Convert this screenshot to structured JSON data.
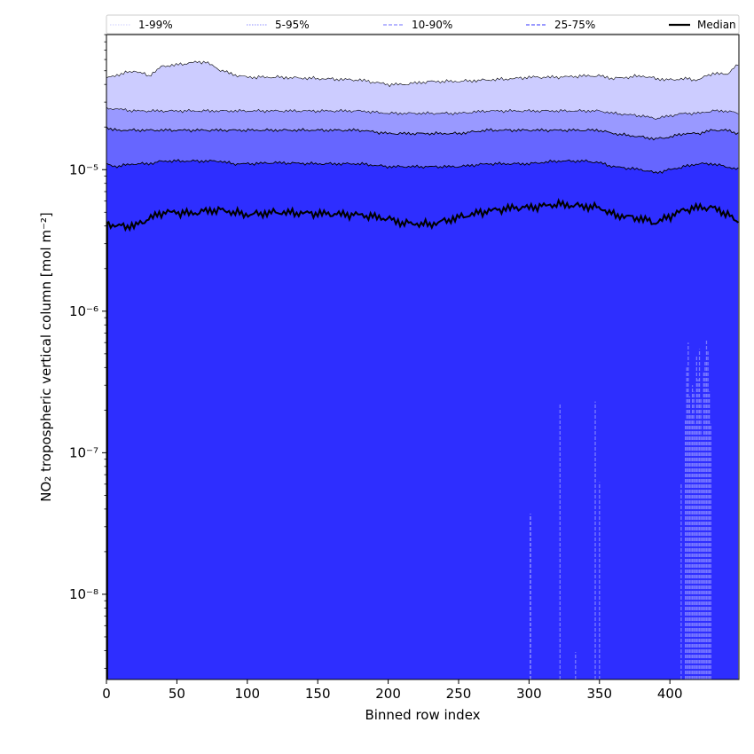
{
  "chart_data": {
    "type": "area",
    "title": "",
    "xlabel": "Binned row index",
    "ylabel": "NO₂ tropospheric vertical column [mol m⁻²]",
    "xlim": [
      0,
      449
    ],
    "ylim": [
      2.5e-09,
      9e-05
    ],
    "yscale": "log",
    "grid": false,
    "x_ticks": [
      0,
      50,
      100,
      150,
      200,
      250,
      300,
      350,
      400
    ],
    "x_tick_labels": [
      "0",
      "50",
      "100",
      "150",
      "200",
      "250",
      "300",
      "350",
      "400"
    ],
    "y_ticks": [
      1e-08,
      1e-07,
      1e-06,
      1e-05
    ],
    "y_tick_labels": [
      "10⁻⁸",
      "10⁻⁷",
      "10⁻⁶",
      "10⁻⁵"
    ],
    "legend": {
      "placement": "top",
      "entries": [
        {
          "label": "1-99%",
          "color": "#d8d8ff",
          "style": "dotted"
        },
        {
          "label": "5-95%",
          "color": "#a3a3ff",
          "style": "dotted"
        },
        {
          "label": "10-90%",
          "color": "#8a8aff",
          "style": "dashed"
        },
        {
          "label": "25-75%",
          "color": "#5c5cff",
          "style": "dashed"
        },
        {
          "label": "Median",
          "color": "#000000",
          "style": "solid"
        }
      ]
    },
    "band_colors": {
      "p1_99": "#ccccff",
      "p5_95": "#9999ff",
      "p10_90": "#6666ff",
      "p25_75": "#2e2eff"
    },
    "series_anchors": {
      "x": [
        0,
        5,
        20,
        30,
        40,
        50,
        60,
        70,
        80,
        90,
        100,
        120,
        150,
        180,
        200,
        210,
        230,
        250,
        270,
        290,
        300,
        320,
        340,
        350,
        360,
        380,
        390,
        400,
        410,
        420,
        430,
        440,
        449
      ],
      "p99": [
        4.4e-05,
        4.6e-05,
        5e-05,
        4.6e-05,
        5.4e-05,
        5.5e-05,
        5.7e-05,
        5.8e-05,
        5.1e-05,
        4.7e-05,
        4.5e-05,
        4.5e-05,
        4.4e-05,
        4.3e-05,
        4e-05,
        4e-05,
        4.2e-05,
        4.2e-05,
        4.3e-05,
        4.4e-05,
        4.5e-05,
        4.5e-05,
        4.6e-05,
        4.6e-05,
        4.4e-05,
        4.6e-05,
        4.4e-05,
        4.3e-05,
        4.4e-05,
        4.3e-05,
        4.8e-05,
        4.7e-05,
        5.6e-05
      ],
      "p95": [
        2.7e-05,
        2.7e-05,
        2.6e-05,
        2.6e-05,
        2.6e-05,
        2.6e-05,
        2.6e-05,
        2.6e-05,
        2.6e-05,
        2.6e-05,
        2.6e-05,
        2.6e-05,
        2.6e-05,
        2.6e-05,
        2.5e-05,
        2.5e-05,
        2.5e-05,
        2.5e-05,
        2.6e-05,
        2.6e-05,
        2.6e-05,
        2.6e-05,
        2.6e-05,
        2.6e-05,
        2.5e-05,
        2.4e-05,
        2.3e-05,
        2.4e-05,
        2.5e-05,
        2.5e-05,
        2.6e-05,
        2.6e-05,
        2.5e-05
      ],
      "p90": [
        2e-05,
        1.9e-05,
        1.9e-05,
        1.9e-05,
        1.9e-05,
        1.9e-05,
        1.9e-05,
        1.9e-05,
        1.9e-05,
        1.9e-05,
        1.9e-05,
        1.9e-05,
        1.9e-05,
        1.9e-05,
        1.8e-05,
        1.8e-05,
        1.8e-05,
        1.8e-05,
        1.9e-05,
        1.9e-05,
        1.9e-05,
        1.9e-05,
        1.9e-05,
        1.9e-05,
        1.8e-05,
        1.7e-05,
        1.65e-05,
        1.7e-05,
        1.8e-05,
        1.8e-05,
        1.9e-05,
        1.9e-05,
        1.8e-05
      ],
      "p75": [
        1.1e-05,
        1.05e-05,
        1.1e-05,
        1.1e-05,
        1.15e-05,
        1.15e-05,
        1.15e-05,
        1.15e-05,
        1.15e-05,
        1.1e-05,
        1.1e-05,
        1.12e-05,
        1.1e-05,
        1.1e-05,
        1.05e-05,
        1.05e-05,
        1.05e-05,
        1.05e-05,
        1.1e-05,
        1.1e-05,
        1.1e-05,
        1.15e-05,
        1.15e-05,
        1.12e-05,
        1.05e-05,
        1e-05,
        9.5e-06,
        1e-05,
        1.05e-05,
        1.1e-05,
        1.1e-05,
        1.05e-05,
        1e-05
      ],
      "median": [
        4.3e-06,
        4e-06,
        4e-06,
        4.5e-06,
        5e-06,
        5e-06,
        4.9e-06,
        5.1e-06,
        5.2e-06,
        5e-06,
        4.8e-06,
        5e-06,
        4.9e-06,
        4.8e-06,
        4.5e-06,
        4.2e-06,
        4.1e-06,
        4.6e-06,
        5.1e-06,
        5.4e-06,
        5.4e-06,
        5.7e-06,
        5.5e-06,
        5.4e-06,
        4.8e-06,
        4.5e-06,
        4.2e-06,
        4.7e-06,
        5.2e-06,
        5.4e-06,
        5.4e-06,
        4.9e-06,
        4.2e-06
      ],
      "p25": [
        2.5e-09,
        2.5e-09,
        2.5e-09,
        2.5e-09,
        2.5e-09,
        2.5e-09,
        2.5e-09,
        2.5e-09,
        2.5e-09,
        2.5e-09,
        2.5e-09,
        2.5e-09,
        2.5e-09,
        2.5e-09,
        2.5e-09,
        2.5e-09,
        2.5e-09,
        2.5e-09,
        2.5e-09,
        2.5e-09,
        2.5e-09,
        2.5e-09,
        2.5e-09,
        2.5e-09,
        2.5e-09,
        2.5e-09,
        2.5e-09,
        2.5e-09,
        2.5e-09,
        2.5e-09,
        2.5e-09,
        2.5e-09,
        2.5e-09
      ]
    },
    "lower_tail_spikes": [
      {
        "x": 301,
        "value": 3.7e-08
      },
      {
        "x": 322,
        "value": 2.2e-07
      },
      {
        "x": 333,
        "value": 3.9e-09
      },
      {
        "x": 347,
        "value": 2.3e-07
      },
      {
        "x": 350,
        "value": 6.2e-08
      },
      {
        "x": 408,
        "value": 6e-08
      },
      {
        "x": 411,
        "value": 1.7e-07
      },
      {
        "x": 412,
        "value": 4e-07
      },
      {
        "x": 413,
        "value": 6e-07
      },
      {
        "x": 414,
        "value": 2.5e-07
      },
      {
        "x": 415,
        "value": 1.9e-07
      },
      {
        "x": 416,
        "value": 3e-07
      },
      {
        "x": 417,
        "value": 2.7e-07
      },
      {
        "x": 418,
        "value": 1.6e-07
      },
      {
        "x": 419,
        "value": 4.8e-07
      },
      {
        "x": 420,
        "value": 3.3e-07
      },
      {
        "x": 421,
        "value": 5.4e-07
      },
      {
        "x": 422,
        "value": 2.4e-07
      },
      {
        "x": 423,
        "value": 1.3e-07
      },
      {
        "x": 424,
        "value": 3.7e-07
      },
      {
        "x": 425,
        "value": 4.5e-07
      },
      {
        "x": 426,
        "value": 6.2e-07
      },
      {
        "x": 427,
        "value": 5.2e-07
      },
      {
        "x": 428,
        "value": 2.7e-07
      },
      {
        "x": 429,
        "value": 1.6e-07
      }
    ]
  }
}
